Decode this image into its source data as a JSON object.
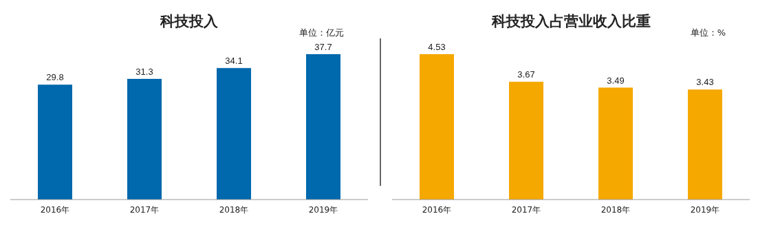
{
  "chart_data": [
    {
      "type": "bar",
      "title": "科技投入",
      "annotations": [
        "单位：亿元"
      ],
      "categories": [
        "2016年",
        "2017年",
        "2018年",
        "2019年"
      ],
      "values": [
        29.8,
        31.3,
        34.1,
        37.7
      ],
      "color": "#0068ac",
      "data_labels": true
    },
    {
      "type": "bar",
      "title": "科技投入占营业收入比重",
      "annotations": [
        "单位：%"
      ],
      "categories": [
        "2016年",
        "2017年",
        "2018年",
        "2019年"
      ],
      "values": [
        4.53,
        3.67,
        3.49,
        3.43
      ],
      "color": "#f5a800",
      "data_labels": true
    }
  ]
}
